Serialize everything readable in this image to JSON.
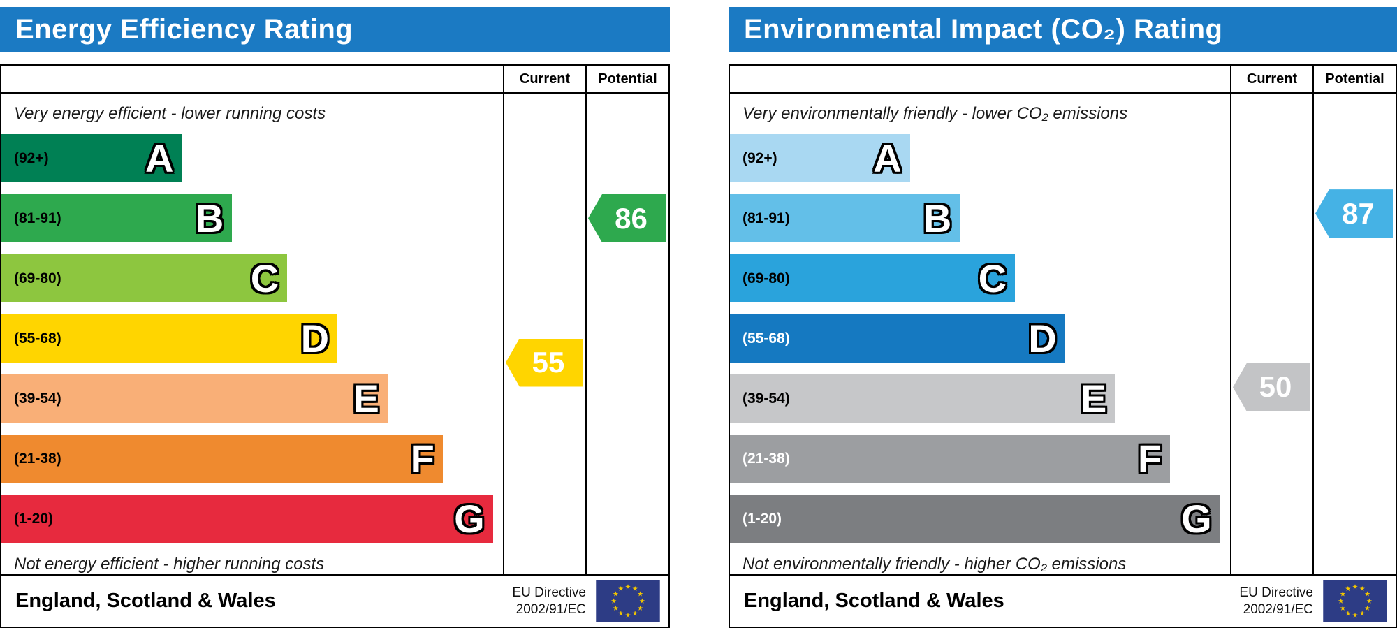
{
  "theme": {
    "page_bg": "#ffffff",
    "header_bg": "#1b7ac3",
    "header_text": "#ffffff",
    "border": "#000000",
    "caption_text": "#1a1a1a",
    "flag_bg": "#2d3c85",
    "flag_star": "#f2c500"
  },
  "chart_data": [
    {
      "type": "epc-band-rating",
      "title": "Energy Efficiency Rating",
      "columns": {
        "current": "Current",
        "potential": "Potential"
      },
      "captions": {
        "top": "Very energy efficient - lower running costs",
        "bottom": "Not energy efficient - higher running costs"
      },
      "bands": [
        {
          "letter": "A",
          "range_label": "(92+)",
          "lo": 92,
          "hi": 100,
          "color": "#008054",
          "text_color": "#000000",
          "width_pct": 36
        },
        {
          "letter": "B",
          "range_label": "(81-91)",
          "lo": 81,
          "hi": 91,
          "color": "#2ea94e",
          "text_color": "#000000",
          "width_pct": 46
        },
        {
          "letter": "C",
          "range_label": "(69-80)",
          "lo": 69,
          "hi": 80,
          "color": "#8dc63f",
          "text_color": "#000000",
          "width_pct": 57
        },
        {
          "letter": "D",
          "range_label": "(55-68)",
          "lo": 55,
          "hi": 68,
          "color": "#ffd500",
          "text_color": "#000000",
          "width_pct": 67
        },
        {
          "letter": "E",
          "range_label": "(39-54)",
          "lo": 39,
          "hi": 54,
          "color": "#f9af77",
          "text_color": "#000000",
          "width_pct": 77
        },
        {
          "letter": "F",
          "range_label": "(21-38)",
          "lo": 21,
          "hi": 38,
          "color": "#ef8a2f",
          "text_color": "#000000",
          "width_pct": 88
        },
        {
          "letter": "G",
          "range_label": "(1-20)",
          "lo": 1,
          "hi": 20,
          "color": "#e72a3e",
          "text_color": "#000000",
          "width_pct": 98
        }
      ],
      "current": {
        "value": "55",
        "band": "D",
        "color": "#ffd500",
        "text_color": "#ffffff"
      },
      "potential": {
        "value": "86",
        "band": "B",
        "color": "#2ea94e",
        "text_color": "#ffffff"
      },
      "footer": {
        "region": "England, Scotland & Wales",
        "directive_line1": "EU Directive",
        "directive_line2": "2002/91/EC"
      }
    },
    {
      "type": "epc-band-rating",
      "title": "Environmental Impact (CO₂) Rating",
      "columns": {
        "current": "Current",
        "potential": "Potential"
      },
      "captions": {
        "top": "Very environmentally friendly - lower CO₂ emissions",
        "bottom": "Not environmentally friendly - higher CO₂ emissions"
      },
      "bands": [
        {
          "letter": "A",
          "range_label": "(92+)",
          "lo": 92,
          "hi": 100,
          "color": "#a9d8f2",
          "text_color": "#000000",
          "width_pct": 36
        },
        {
          "letter": "B",
          "range_label": "(81-91)",
          "lo": 81,
          "hi": 91,
          "color": "#63bfe8",
          "text_color": "#000000",
          "width_pct": 46
        },
        {
          "letter": "C",
          "range_label": "(69-80)",
          "lo": 69,
          "hi": 80,
          "color": "#2aa3dc",
          "text_color": "#000000",
          "width_pct": 57
        },
        {
          "letter": "D",
          "range_label": "(55-68)",
          "lo": 55,
          "hi": 68,
          "color": "#1579c1",
          "text_color": "#ffffff",
          "width_pct": 67
        },
        {
          "letter": "E",
          "range_label": "(39-54)",
          "lo": 39,
          "hi": 54,
          "color": "#c6c7c9",
          "text_color": "#000000",
          "width_pct": 77
        },
        {
          "letter": "F",
          "range_label": "(21-38)",
          "lo": 21,
          "hi": 38,
          "color": "#9c9ea1",
          "text_color": "#ffffff",
          "width_pct": 88
        },
        {
          "letter": "G",
          "range_label": "(1-20)",
          "lo": 1,
          "hi": 20,
          "color": "#7c7e81",
          "text_color": "#ffffff",
          "width_pct": 98
        }
      ],
      "current": {
        "value": "50",
        "band": "E",
        "color": "#c3c4c6",
        "text_color": "#ffffff"
      },
      "potential": {
        "value": "87",
        "band": "B",
        "color": "#45b2e5",
        "text_color": "#ffffff"
      },
      "footer": {
        "region": "England, Scotland & Wales",
        "directive_line1": "EU Directive",
        "directive_line2": "2002/91/EC"
      }
    }
  ]
}
